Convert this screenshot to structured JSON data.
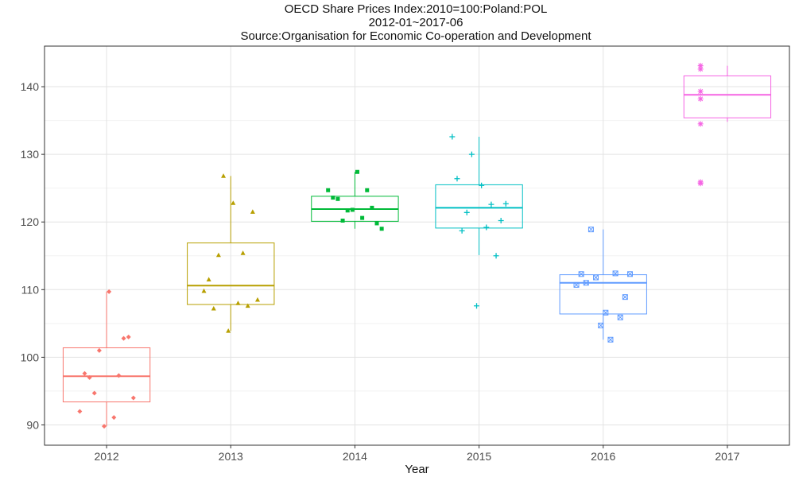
{
  "chart_data": {
    "type": "box",
    "title": "OECD Share Prices Index:2010=100:Poland:POL",
    "subtitle": "2012-01~2017-06",
    "source": "Source:Organisation for Economic Co-operation and Development",
    "xlabel": "Year",
    "ylabel": "",
    "ylim": [
      87,
      146
    ],
    "yticks": [
      90,
      100,
      110,
      120,
      130,
      140
    ],
    "grid": true,
    "legend": "none",
    "categories": [
      "2012",
      "2013",
      "2014",
      "2015",
      "2016",
      "2017"
    ],
    "series": [
      {
        "category": "2012",
        "color": "#f8766d",
        "shape": "diamond",
        "box": {
          "whisker_low": 89.8,
          "q1": 93.4,
          "median": 97.2,
          "q3": 101.4,
          "whisker_high": 109.7
        },
        "points": [
          92.0,
          91.1,
          97.0,
          102.8,
          101.0,
          94.0,
          109.7,
          97.6,
          97.3,
          94.7,
          103.0,
          89.8
        ]
      },
      {
        "category": "2013",
        "color": "#b79f00",
        "shape": "triangle",
        "box": {
          "whisker_low": 103.9,
          "q1": 107.8,
          "median": 110.6,
          "q3": 116.9,
          "whisker_high": 126.8
        },
        "points": [
          109.8,
          108.0,
          107.2,
          107.6,
          126.8,
          108.5,
          122.8,
          111.5,
          115.4,
          115.1,
          121.5,
          103.9
        ]
      },
      {
        "category": "2014",
        "color": "#00ba38",
        "shape": "square",
        "box": {
          "whisker_low": 119.0,
          "q1": 120.1,
          "median": 121.9,
          "q3": 123.8,
          "whisker_high": 127.4
        },
        "points": [
          124.7,
          120.6,
          123.4,
          122.1,
          121.7,
          119.0,
          127.4,
          123.6,
          124.7,
          120.2,
          119.8,
          121.8
        ]
      },
      {
        "category": "2015",
        "color": "#00bfc4",
        "shape": "plus",
        "box": {
          "whisker_low": 115.1,
          "q1": 119.1,
          "median": 122.1,
          "q3": 125.5,
          "whisker_high": 132.6
        },
        "points": [
          132.6,
          119.2,
          118.7,
          115.0,
          130.0,
          122.7,
          125.4,
          126.4,
          122.6,
          121.4,
          120.2,
          107.6
        ]
      },
      {
        "category": "2016",
        "color": "#619cff",
        "shape": "boxed-x",
        "box": {
          "whisker_low": 102.6,
          "q1": 106.4,
          "median": 111.0,
          "q3": 112.2,
          "whisker_high": 118.9
        },
        "points": [
          110.7,
          102.6,
          111.0,
          105.9,
          111.8,
          112.3,
          106.6,
          112.3,
          112.4,
          118.9,
          108.9,
          104.7
        ]
      },
      {
        "category": "2017",
        "color": "#f564e3",
        "shape": "asterisk",
        "box": {
          "whisker_low": 134.8,
          "q1": 135.4,
          "median": 138.8,
          "q3": 141.6,
          "whisker_high": 143.1
        },
        "points": [
          134.5,
          139.3,
          142.6,
          138.2,
          125.9,
          125.7,
          143.1
        ]
      }
    ]
  }
}
